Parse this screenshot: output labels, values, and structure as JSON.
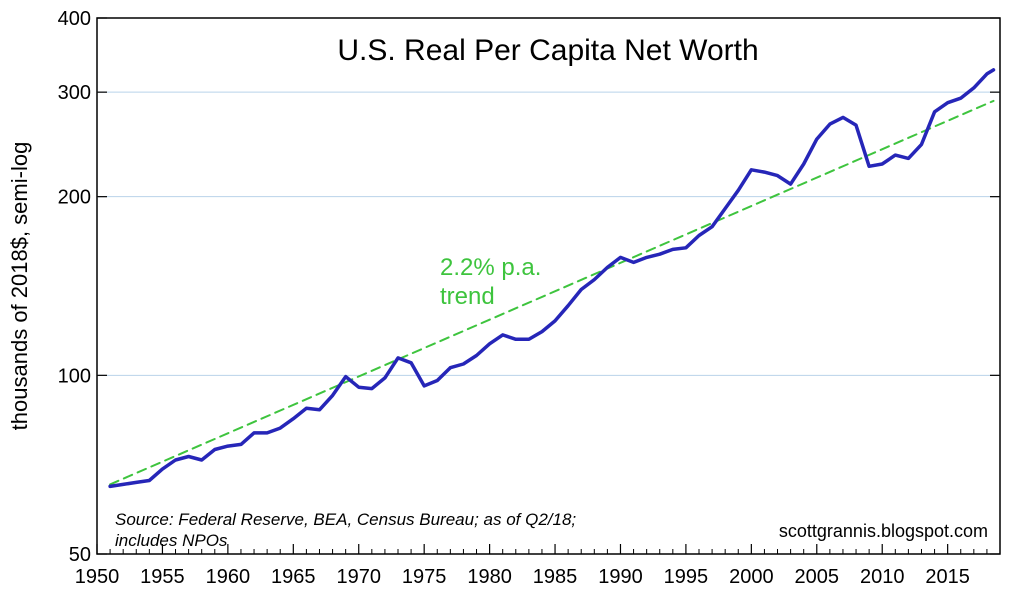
{
  "chart_data": {
    "type": "line",
    "title": "U.S. Real Per Capita Net Worth",
    "ylabel": "thousands of 2018$, semi-log",
    "xlabel": "",
    "yscale": "log",
    "ylim": [
      50,
      400
    ],
    "xlim": [
      1950,
      2019
    ],
    "grid": "horizontal",
    "y_ticks": [
      {
        "value": 50,
        "label": "50"
      },
      {
        "value": 100,
        "label": "100"
      },
      {
        "value": 200,
        "label": "200"
      },
      {
        "value": 300,
        "label": "300"
      },
      {
        "value": 400,
        "label": "400"
      }
    ],
    "x_ticks": [
      {
        "value": 1950,
        "label": "1950"
      },
      {
        "value": 1955,
        "label": "1955"
      },
      {
        "value": 1960,
        "label": "1960"
      },
      {
        "value": 1965,
        "label": "1965"
      },
      {
        "value": 1970,
        "label": "1970"
      },
      {
        "value": 1975,
        "label": "1975"
      },
      {
        "value": 1980,
        "label": "1980"
      },
      {
        "value": 1985,
        "label": "1985"
      },
      {
        "value": 1990,
        "label": "1990"
      },
      {
        "value": 1995,
        "label": "1995"
      },
      {
        "value": 2000,
        "label": "2000"
      },
      {
        "value": 2005,
        "label": "2005"
      },
      {
        "value": 2010,
        "label": "2010"
      },
      {
        "value": 2015,
        "label": "2015"
      }
    ],
    "series": [
      {
        "color": "#2626b8",
        "style": "solid",
        "x": [
          1951,
          1952,
          1953,
          1954,
          1955,
          1956,
          1957,
          1958,
          1959,
          1960,
          1961,
          1962,
          1963,
          1964,
          1965,
          1966,
          1967,
          1968,
          1969,
          1970,
          1971,
          1972,
          1973,
          1974,
          1975,
          1976,
          1977,
          1978,
          1979,
          1980,
          1981,
          1982,
          1983,
          1984,
          1985,
          1986,
          1987,
          1988,
          1989,
          1990,
          1991,
          1992,
          1993,
          1994,
          1995,
          1996,
          1997,
          1998,
          1999,
          2000,
          2001,
          2002,
          2003,
          2004,
          2005,
          2006,
          2007,
          2008,
          2009,
          2010,
          2011,
          2012,
          2013,
          2014,
          2015,
          2016,
          2017,
          2018,
          2018.5
        ],
        "y": [
          65,
          65.5,
          66,
          66.5,
          69.5,
          72,
          73,
          72,
          75,
          76,
          76.5,
          80,
          80,
          81.5,
          84.5,
          88,
          87.5,
          92.5,
          99.5,
          95.5,
          95,
          99,
          107,
          105,
          96,
          98,
          103,
          104.5,
          108,
          113,
          117,
          115,
          115,
          118.5,
          123.5,
          131,
          139.5,
          145,
          152,
          158,
          155,
          158,
          160,
          163,
          164,
          172,
          178,
          191,
          205,
          222,
          220,
          217,
          210,
          227,
          250,
          265,
          272,
          264,
          225,
          227,
          235,
          232,
          245,
          278,
          288,
          293,
          305,
          322,
          327
        ]
      },
      {
        "color": "#3ec43e",
        "style": "dashed",
        "x": [
          1951,
          2018.5
        ],
        "y": [
          65.5,
          290
        ]
      }
    ],
    "annotations": [
      {
        "text": "2.2% p.a.",
        "color": "#3ec43e"
      },
      {
        "text": "trend",
        "color": "#3ec43e"
      }
    ]
  },
  "source_note": {
    "line1": "Source: Federal Reserve, BEA, Census Bureau; as of Q2/18;",
    "line2": "includes NPOs"
  },
  "credit": "scottgrannis.blogspot.com"
}
